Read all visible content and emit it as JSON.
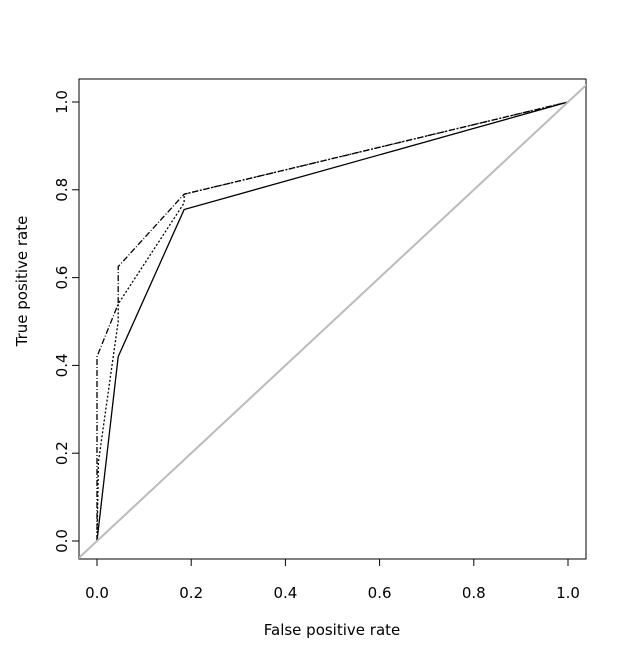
{
  "chart_data": {
    "type": "line",
    "title": "",
    "xlabel": "False positive rate",
    "ylabel": "True positive rate",
    "xlim": [
      0,
      1
    ],
    "ylim": [
      0,
      1
    ],
    "xticks": [
      "0.0",
      "0.2",
      "0.4",
      "0.6",
      "0.8",
      "1.0"
    ],
    "yticks": [
      "0.0",
      "0.2",
      "0.4",
      "0.6",
      "0.8",
      "1.0"
    ],
    "grid": false,
    "legend": "none",
    "series": [
      {
        "name": "solid",
        "style": "solid",
        "color": "#000000",
        "x": [
          0,
          0.045,
          0.185,
          1
        ],
        "y": [
          0,
          0.42,
          0.755,
          1
        ]
      },
      {
        "name": "dotted",
        "style": "dotted",
        "color": "#000000",
        "x": [
          0,
          0.003,
          0.045,
          0.045,
          0.185,
          0.185,
          1
        ],
        "y": [
          0,
          0.18,
          0.5,
          0.54,
          0.77,
          0.79,
          1
        ]
      },
      {
        "name": "dashdot",
        "style": "dashdot",
        "color": "#000000",
        "x": [
          0,
          0,
          0.045,
          0.045,
          0.185,
          1
        ],
        "y": [
          0,
          0.42,
          0.54,
          0.625,
          0.79,
          1
        ]
      },
      {
        "name": "diagonal",
        "style": "solid",
        "color": "#bbbbbb",
        "x": [
          -0.04,
          1.04
        ],
        "y": [
          -0.04,
          1.04
        ]
      }
    ]
  }
}
